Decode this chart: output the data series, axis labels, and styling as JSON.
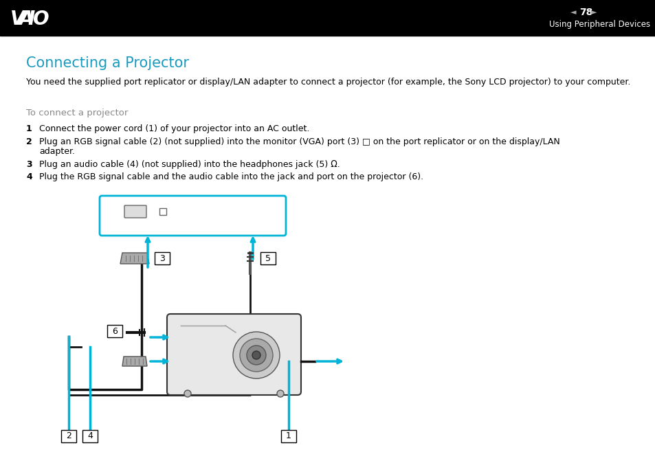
{
  "header_bg": "#000000",
  "header_text_color": "#ffffff",
  "header_vaio": "VAIO",
  "header_page": "78",
  "header_section": "Using Peripheral Devices",
  "title": "Connecting a Projector",
  "title_color": "#1a9abf",
  "body_bg": "#ffffff",
  "body_text_color": "#000000",
  "intro_text": "You need the supplied port replicator or display/LAN adapter to connect a projector (for example, the Sony LCD projector) to your computer.",
  "subtitle": "To connect a projector",
  "subtitle_color": "#888888",
  "step1": "Connect the power cord (1) of your projector into an AC outlet.",
  "step2a": "Plug an RGB signal cable (2) (not supplied) into the monitor (VGA) port (3) □ on the port replicator or on the display/LAN",
  "step2b": "adapter.",
  "step3": "Plug an audio cable (4) (not supplied) into the headphones jack (5) Ω.",
  "step4": "Plug the RGB signal cable and the audio cable into the jack and port on the projector (6).",
  "arrow_color": "#00b4d8",
  "cable_color": "#111111",
  "connector_color": "#aaaaaa",
  "label_border": "#000000",
  "label_bg": "#ffffff"
}
